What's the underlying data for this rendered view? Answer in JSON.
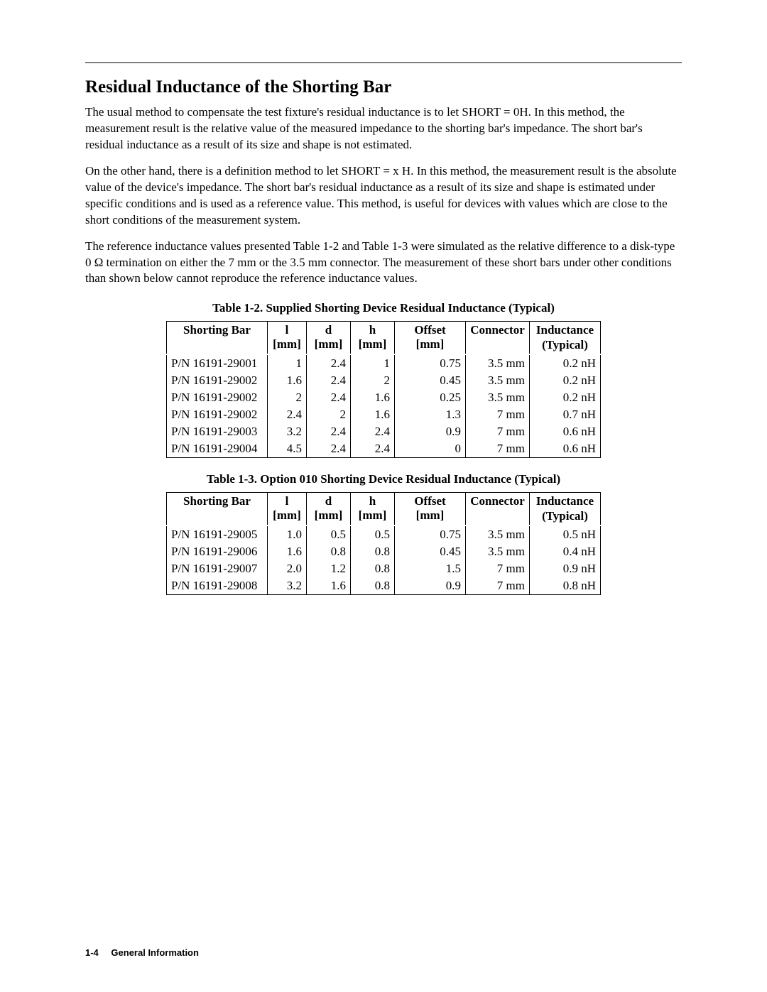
{
  "heading": "Residual Inductance of the Shorting Bar",
  "paragraphs": [
    "The usual method to compensate the test fixture's residual inductance is to let SHORT = 0H. In this method, the measurement result is the relative value of the measured impedance to the shorting bar's impedance. The short bar's residual inductance as a result of its size and shape is not estimated.",
    "On the other hand, there is a definition method to let SHORT = x H. In this method, the measurement result is the absolute value of the device's impedance. The short bar's residual inductance as a result of its size and shape is estimated under specific conditions and is used as a reference value. This method, is useful for devices with values which are close to the short conditions of the measurement system.",
    "The reference inductance values presented Table 1-2 and Table 1-3 were simulated as the relative difference to a disk-type 0 Ω termination on either the 7 mm or the 3.5 mm connector. The measurement of these short bars under other conditions than shown below cannot reproduce the reference inductance values."
  ],
  "table1": {
    "caption": "Table 1-2. Supplied Shorting Device Residual Inductance (Typical)",
    "headers": {
      "shorting": "Shorting Bar",
      "l": "l [mm]",
      "d": "d [mm]",
      "h": "h [mm]",
      "offset": "Offset [mm]",
      "connector": "Connector",
      "inductance_line1": "Inductance",
      "inductance_line2": "(Typical)"
    },
    "rows": [
      {
        "shorting": "P/N 16191-29001",
        "l": "1",
        "d": "2.4",
        "h": "1",
        "offset": "0.75",
        "connector": "3.5 mm",
        "inductance": "0.2 nH"
      },
      {
        "shorting": "P/N 16191-29002",
        "l": "1.6",
        "d": "2.4",
        "h": "2",
        "offset": "0.45",
        "connector": "3.5 mm",
        "inductance": "0.2 nH"
      },
      {
        "shorting": "P/N 16191-29002",
        "l": "2",
        "d": "2.4",
        "h": "1.6",
        "offset": "0.25",
        "connector": "3.5 mm",
        "inductance": "0.2 nH"
      },
      {
        "shorting": "P/N 16191-29002",
        "l": "2.4",
        "d": "2",
        "h": "1.6",
        "offset": "1.3",
        "connector": "7 mm",
        "inductance": "0.7 nH"
      },
      {
        "shorting": "P/N 16191-29003",
        "l": "3.2",
        "d": "2.4",
        "h": "2.4",
        "offset": "0.9",
        "connector": "7 mm",
        "inductance": "0.6 nH"
      },
      {
        "shorting": "P/N 16191-29004",
        "l": "4.5",
        "d": "2.4",
        "h": "2.4",
        "offset": "0",
        "connector": "7 mm",
        "inductance": "0.6 nH"
      }
    ]
  },
  "table2": {
    "caption": "Table 1-3. Option 010 Shorting Device Residual Inductance (Typical)",
    "headers": {
      "shorting": "Shorting Bar",
      "l": "l [mm]",
      "d": "d [mm]",
      "h": "h [mm]",
      "offset": "Offset [mm]",
      "connector": "Connector",
      "inductance_line1": "Inductance",
      "inductance_line2": "(Typical)"
    },
    "rows": [
      {
        "shorting": "P/N 16191-29005",
        "l": "1.0",
        "d": "0.5",
        "h": "0.5",
        "offset": "0.75",
        "connector": "3.5 mm",
        "inductance": "0.5 nH"
      },
      {
        "shorting": "P/N 16191-29006",
        "l": "1.6",
        "d": "0.8",
        "h": "0.8",
        "offset": "0.45",
        "connector": "3.5 mm",
        "inductance": "0.4 nH"
      },
      {
        "shorting": "P/N 16191-29007",
        "l": "2.0",
        "d": "1.2",
        "h": "0.8",
        "offset": "1.5",
        "connector": "7 mm",
        "inductance": "0.9 nH"
      },
      {
        "shorting": "P/N 16191-29008",
        "l": "3.2",
        "d": "1.6",
        "h": "0.8",
        "offset": "0.9",
        "connector": "7 mm",
        "inductance": "0.8 nH"
      }
    ]
  },
  "footer": {
    "pageno": "1-4",
    "section": "General Information"
  }
}
